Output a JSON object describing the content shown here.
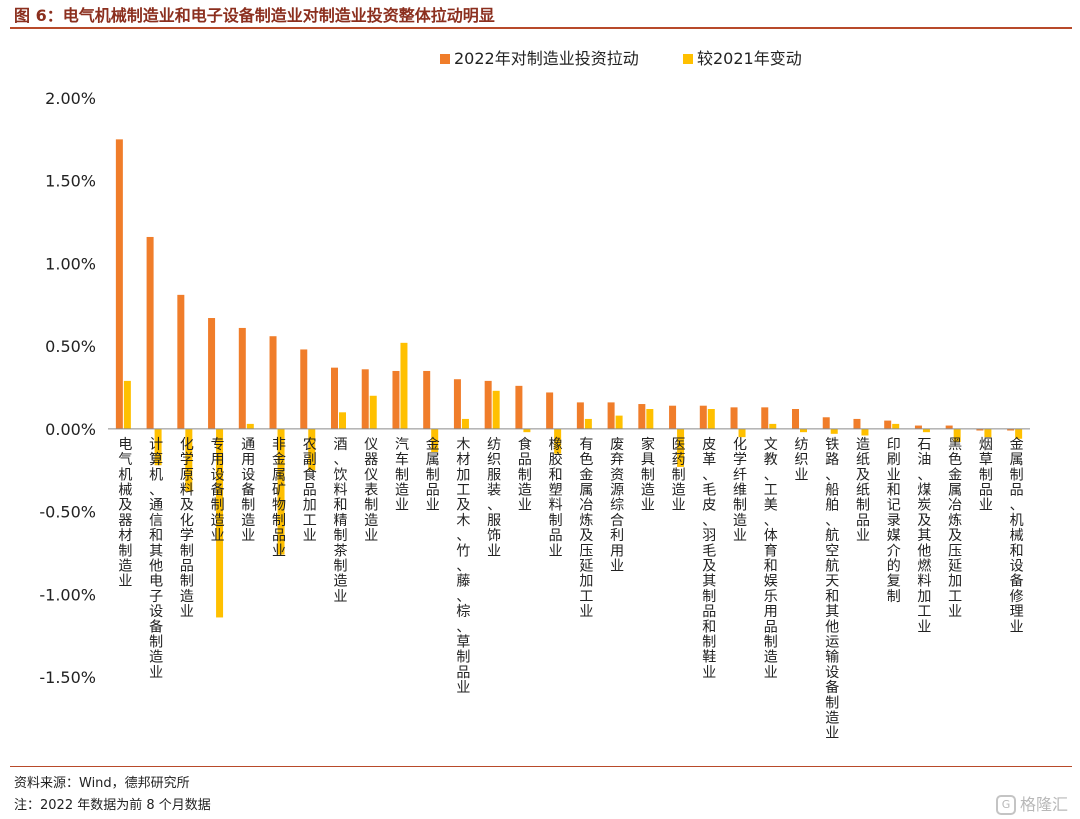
{
  "header": {
    "title": "图 6：电气机械制造业和电子设备制造业对制造业投资整体拉动明显"
  },
  "footer": {
    "source": "资料来源：Wind，德邦研究所",
    "note": "注：2022 年数据为前 8 个月数据",
    "watermark": "格隆汇"
  },
  "colors": {
    "series1": "#F07D2A",
    "series2": "#FFC000",
    "title": "#8B2F1E",
    "rule": "#B84A2A"
  },
  "chart_data": {
    "type": "bar",
    "title": "",
    "xlabel": "",
    "ylabel": "",
    "ylim": [
      -0.015,
      0.02
    ],
    "yticks": [
      0.02,
      0.015,
      0.01,
      0.005,
      0.0,
      -0.005,
      -0.01,
      -0.015
    ],
    "ytick_labels": [
      "2.00%",
      "1.50%",
      "1.00%",
      "0.50%",
      "0.00%",
      "-0.50%",
      "-1.00%",
      "-1.50%"
    ],
    "grid": false,
    "legend_position": "top",
    "categories": [
      "电气机械及器材制造业",
      "计算机、通信和其他电子设备制造业",
      "化学原料及化学制品制造业",
      "专用设备制造业",
      "通用设备制造业",
      "非金属矿物制品业",
      "农副食品加工业",
      "酒、饮料和精制茶制造业",
      "仪器仪表制造业",
      "汽车制造业",
      "金属制品业",
      "木材加工及木、竹、藤、棕、草制品业",
      "纺织服装、服饰业",
      "食品制造业",
      "橡胶和塑料制品业",
      "有色金属冶炼及压延加工业",
      "废弃资源综合利用业",
      "家具制造业",
      "医药制造业",
      "皮革、毛皮、羽毛及其制品和制鞋业",
      "化学纤维制造业",
      "文教、工美、体育和娱乐用品制造业",
      "纺织业",
      "铁路、船舶、航空航天和其他运输设备制造业",
      "造纸及纸制品业",
      "印刷业和记录媒介的复制",
      "石油、煤炭及其他燃料加工业",
      "黑色金属冶炼及压延加工业",
      "烟草制品业",
      "金属制品、机械和设备修理业"
    ],
    "series": [
      {
        "name": "2022年对制造业投资拉动",
        "values": [
          0.0175,
          0.0116,
          0.0081,
          0.0067,
          0.0061,
          0.0056,
          0.0048,
          0.0037,
          0.0036,
          0.0035,
          0.0035,
          0.003,
          0.0029,
          0.0026,
          0.0022,
          0.0016,
          0.0016,
          0.0015,
          0.0014,
          0.0014,
          0.0013,
          0.0013,
          0.0012,
          0.0007,
          0.0006,
          0.0005,
          0.0002,
          0.0002,
          -0.0001,
          -0.0001
        ]
      },
      {
        "name": "较2021年变动",
        "values": [
          0.0029,
          -0.0022,
          -0.0038,
          -0.0114,
          0.0003,
          -0.0076,
          -0.0025,
          0.001,
          0.002,
          0.0052,
          -0.0014,
          0.0006,
          0.0023,
          -0.0002,
          -0.0015,
          0.0006,
          0.0008,
          0.0012,
          -0.0023,
          0.0012,
          -0.0005,
          0.0003,
          -0.0002,
          -0.0003,
          -0.0004,
          0.0003,
          -0.0002,
          -0.0008,
          -0.0005,
          -0.0006
        ]
      }
    ]
  }
}
